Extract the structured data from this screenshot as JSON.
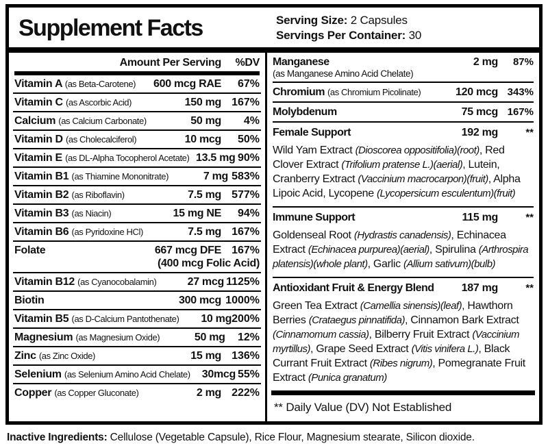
{
  "header": {
    "title": "Supplement Facts",
    "serving_size_label": "Serving Size:",
    "serving_size_value": " 2 Capsules",
    "servings_per_container_label": "Servings Per Container:",
    "servings_per_container_value": " 30"
  },
  "left_table": {
    "amount_header": "Amount Per Serving",
    "dv_header": "%DV",
    "rows": [
      {
        "name": "Vitamin A ",
        "form": "(as Beta-Carotene)",
        "amount": "600 mcg RAE",
        "dv": "67%"
      },
      {
        "name": "Vitamin C ",
        "form": "(as Ascorbic Acid)",
        "amount": "150 mg",
        "dv": "167%"
      },
      {
        "name": "Calcium ",
        "form": "(as Calcium Carbonate)",
        "amount": "50 mg",
        "dv": "4%"
      },
      {
        "name": "Vitamin D ",
        "form": "(as Cholecalciferol)",
        "amount": "10 mcg",
        "dv": "50%"
      },
      {
        "name": "Vitamin E ",
        "form": "(as DL-Alpha Tocopherol Acetate)",
        "amount": "13.5 mg",
        "dv": "90%"
      },
      {
        "name": "Vitamin B1 ",
        "form": "(as Thiamine Mononitrate)",
        "amount": "7 mg",
        "dv": "583%"
      },
      {
        "name": "Vitamin B2 ",
        "form": "(as Riboflavin)",
        "amount": "7.5 mg",
        "dv": "577%"
      },
      {
        "name": "Vitamin B3 ",
        "form": "(as Niacin)",
        "amount": "15 mg NE",
        "dv": "94%"
      },
      {
        "name": "Vitamin B6 ",
        "form": "(as Pyridoxine HCl)",
        "amount": "7.5 mg",
        "dv": "167%"
      },
      {
        "name": "Folate",
        "form": "",
        "amount": "667 mcg DFE",
        "dv": "167%",
        "amount_note": "(400 mcg Folic Acid)"
      },
      {
        "name": "Vitamin B12 ",
        "form": "(as Cyanocobalamin)",
        "amount": "27 mcg",
        "dv": "1125%"
      },
      {
        "name": "Biotin",
        "form": "",
        "amount": "300 mcg",
        "dv": "1000%"
      },
      {
        "name": "Vitamin B5 ",
        "form": "(as D-Calcium Pantothenate)",
        "amount": "10 mg",
        "dv": "200%"
      },
      {
        "name": "Magnesium ",
        "form": "(as Magnesium Oxide)",
        "amount": "50 mg",
        "dv": "12%"
      },
      {
        "name": "Zinc ",
        "form": "(as Zinc Oxide)",
        "amount": "15 mg",
        "dv": "136%"
      },
      {
        "name": "Selenium ",
        "form": "(as Selenium Amino Acid Chelate)",
        "amount": "30mcg",
        "dv": "55%"
      },
      {
        "name": "Copper ",
        "form": "(as Copper Gluconate)",
        "amount": "2 mg",
        "dv": "222%"
      }
    ]
  },
  "right_table": {
    "minerals": [
      {
        "name": "Manganese",
        "form": "(as Manganese Amino Acid Chelate)",
        "amount": "2 mg",
        "dv": "87%"
      },
      {
        "name": "Chromium ",
        "form": "(as Chromium Picolinate)",
        "amount": "120 mcg",
        "dv": "343%"
      },
      {
        "name": "Molybdenum",
        "form": "",
        "amount": "75 mcg",
        "dv": "167%"
      }
    ],
    "blends": [
      {
        "name": "Female Support",
        "amount": "192 mg",
        "dv": "**",
        "ingredients": [
          {
            "t": "Wild Yam Extract ",
            "i": false
          },
          {
            "t": "(Dioscorea oppositifolia)(root)",
            "i": true
          },
          {
            "t": ", Red Clover Extract ",
            "i": false
          },
          {
            "t": "(Trifolium pratense L.)(aerial)",
            "i": true
          },
          {
            "t": ", Lutein, Cranberry Extract ",
            "i": false
          },
          {
            "t": "(Vaccinium macrocarpon)(fruit)",
            "i": true
          },
          {
            "t": ", Alpha Lipoic Acid, Lycopene ",
            "i": false
          },
          {
            "t": "(Lycopersicum esculentum)(fruit)",
            "i": true
          }
        ]
      },
      {
        "name": "Immune Support",
        "amount": "115 mg",
        "dv": "**",
        "ingredients": [
          {
            "t": "Goldenseal Root ",
            "i": false
          },
          {
            "t": "(Hydrastis canadensis)",
            "i": true
          },
          {
            "t": ", Echinacea Extract ",
            "i": false
          },
          {
            "t": "(Echinacea purpurea)(aerial)",
            "i": true
          },
          {
            "t": ", Spirulina ",
            "i": false
          },
          {
            "t": "(Arthrospira platensis)(whole plant)",
            "i": true
          },
          {
            "t": ", Garlic ",
            "i": false
          },
          {
            "t": "(Allium sativum)(bulb)",
            "i": true
          }
        ]
      },
      {
        "name": "Antioxidant Fruit & Energy Blend",
        "amount": "187 mg",
        "dv": "**",
        "ingredients": [
          {
            "t": "Green Tea Extract ",
            "i": false
          },
          {
            "t": "(Camellia sinensis)(leaf)",
            "i": true
          },
          {
            "t": ", Hawthorn Berries ",
            "i": false
          },
          {
            "t": "(Crataegus pinnatifida)",
            "i": true
          },
          {
            "t": ", Cinnamon Bark Extract ",
            "i": false
          },
          {
            "t": "(Cinnamomum cassia)",
            "i": true
          },
          {
            "t": ", Bilberry Fruit Extract ",
            "i": false
          },
          {
            "t": "(Vaccinium myrtillus)",
            "i": true
          },
          {
            "t": ", Grape Seed Extract ",
            "i": false
          },
          {
            "t": "(Vitis vinifera L.)",
            "i": true
          },
          {
            "t": ", Black Currant Fruit Extract ",
            "i": false
          },
          {
            "t": "(Ribes nigrum)",
            "i": true
          },
          {
            "t": ", Pomegranate Fruit Extract ",
            "i": false
          },
          {
            "t": "(Punica granatum)",
            "i": true
          }
        ]
      }
    ],
    "footnote": "** Daily Value (DV) Not Established"
  },
  "inactive": {
    "label": "Inactive Ingredients:",
    "text": " Cellulose (Vegetable Capsule), Rice Flour, Magnesium stearate, Silicon dioxide."
  }
}
